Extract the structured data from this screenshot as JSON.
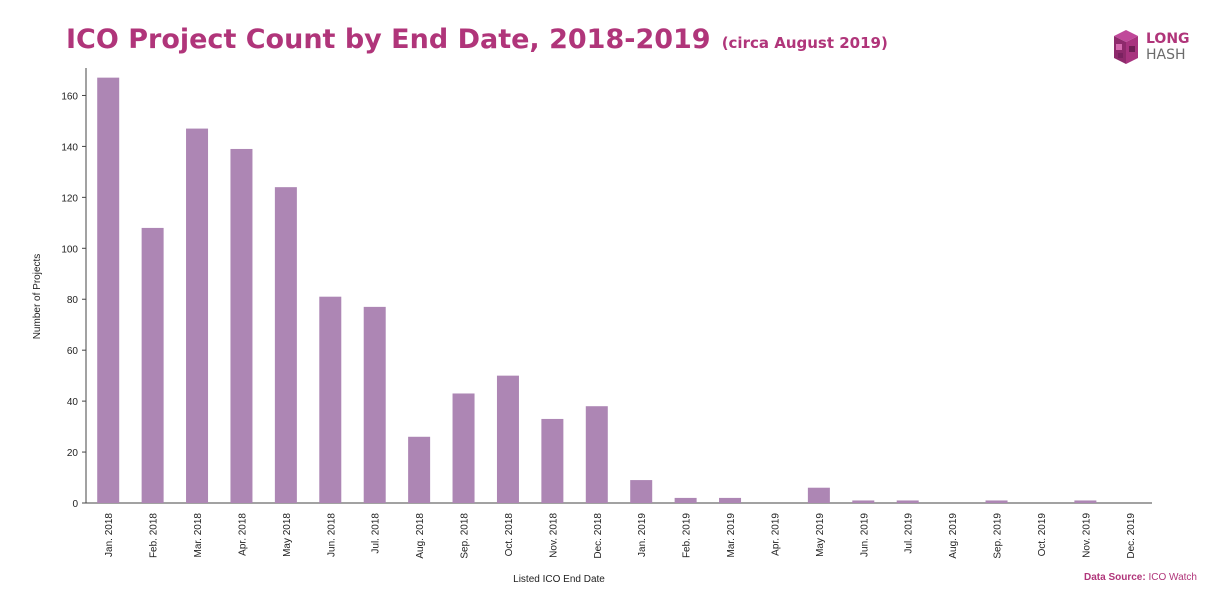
{
  "colors": {
    "bar": "#ad86b4",
    "accent": "#b0357a",
    "axis": "#444444",
    "text": "#222222"
  },
  "header": {
    "title": "ICO Project Count by End Date, 2018-2019",
    "subtitle": "(circa August 2019)"
  },
  "logo": {
    "top": "LONG",
    "bottom": "HASH",
    "icon": "cube-logo-icon"
  },
  "source": {
    "label": "Data Source:",
    "value": "ICO Watch"
  },
  "chart_data": {
    "type": "bar",
    "xlabel": "Listed ICO End Date",
    "ylabel": "Number of Projects",
    "ylim": [
      0,
      170
    ],
    "yticks": [
      0,
      20,
      40,
      60,
      80,
      100,
      120,
      140,
      160
    ],
    "grid": false,
    "categories": [
      "Jan. 2018",
      "Feb. 2018",
      "Mar. 2018",
      "Apr. 2018",
      "May 2018",
      "Jun. 2018",
      "Jul. 2018",
      "Aug. 2018",
      "Sep. 2018",
      "Oct. 2018",
      "Nov. 2018",
      "Dec. 2018",
      "Jan. 2019",
      "Feb. 2019",
      "Mar. 2019",
      "Apr. 2019",
      "May 2019",
      "Jun. 2019",
      "Jul. 2019",
      "Aug. 2019",
      "Sep. 2019",
      "Oct. 2019",
      "Nov. 2019",
      "Dec. 2019"
    ],
    "values": [
      167,
      108,
      147,
      139,
      124,
      81,
      77,
      26,
      43,
      50,
      33,
      38,
      9,
      2,
      2,
      0,
      6,
      1,
      1,
      0,
      1,
      0,
      1,
      0
    ]
  }
}
